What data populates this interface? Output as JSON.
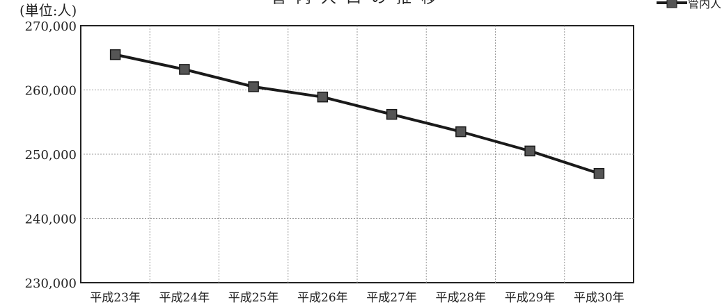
{
  "chart_data": {
    "type": "line",
    "title": "管内人口の推移",
    "unit_label": "(単位:人)",
    "categories": [
      "平成23年",
      "平成24年",
      "平成25年",
      "平成26年",
      "平成27年",
      "平成28年",
      "平成29年",
      "平成30年"
    ],
    "series": [
      {
        "name": "管内人口",
        "values": [
          265500,
          263200,
          260500,
          258900,
          256200,
          253500,
          250500,
          247000
        ],
        "color": "#1a1a1a"
      }
    ],
    "ylim": [
      230000,
      270000
    ],
    "yticks": [
      230000,
      240000,
      250000,
      260000,
      270000
    ],
    "ytick_labels": [
      "230,000",
      "240,000",
      "250,000",
      "260,000",
      "270,000"
    ],
    "grid": true,
    "legend_position": "top-right"
  }
}
